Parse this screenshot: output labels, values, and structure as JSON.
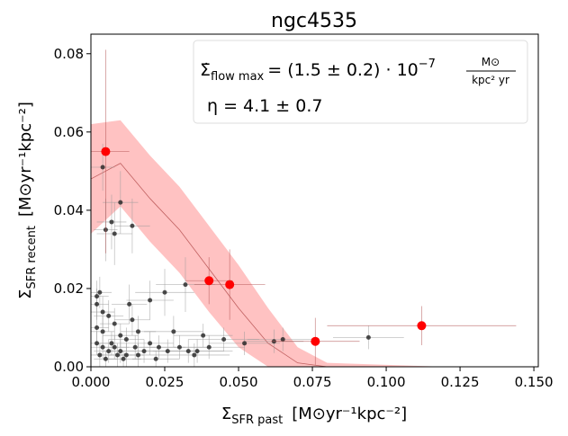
{
  "chart_data": {
    "type": "scatter",
    "title": "ngc4535",
    "x_label": {
      "symbol": "Σ",
      "subscript": "SFR past",
      "unit": "[M⊙yr⁻¹kpc⁻²]"
    },
    "y_label": {
      "symbol": "Σ",
      "subscript": "SFR recent",
      "unit": "[M⊙yr⁻¹kpc⁻²]"
    },
    "annotation": {
      "symbol": "Σ̇",
      "subscript": "flow max",
      "expression": "= (1.5 ± 0.2) · 10",
      "exponent": "−7",
      "unit_numerator": "M⊙",
      "unit_denominator": "kpc² yr",
      "eta": "η = 4.1 ± 0.7"
    },
    "xlim": [
      0,
      0.1515
    ],
    "ylim": [
      0,
      0.085
    ],
    "xticks": [
      {
        "value": 0,
        "label": "0.000"
      },
      0.025,
      {
        "value": 0.05,
        "label": "0.050"
      },
      0.075,
      {
        "value": 0.1,
        "label": "0.100"
      },
      0.125,
      {
        "value": 0.15,
        "label": "0.150"
      }
    ],
    "yticks": [
      {
        "value": 0,
        "label": "0.00"
      },
      0.02,
      0.04,
      0.06,
      0.08
    ],
    "band": {
      "color": "#ff9999",
      "x": [
        0,
        0.01,
        0.02,
        0.03,
        0.04,
        0.05,
        0.06,
        0.07,
        0.08,
        0.12
      ],
      "upper": [
        0.062,
        0.063,
        0.054,
        0.046,
        0.036,
        0.026,
        0.015,
        0.005,
        0.001,
        0
      ],
      "lower": [
        0.034,
        0.041,
        0.032,
        0.024,
        0.014,
        0.005,
        0,
        0,
        0,
        0
      ]
    },
    "model": {
      "color": "#c06060",
      "x": [
        0,
        0.01,
        0.02,
        0.03,
        0.04,
        0.05,
        0.06,
        0.07,
        0.08
      ],
      "values": [
        0.048,
        0.052,
        0.043,
        0.035,
        0.025,
        0.015,
        0.006,
        0.001,
        0
      ]
    },
    "series": [
      {
        "color": "#ff0000",
        "error_color": "#b05050",
        "x": [
          0.005,
          0.04,
          0.047,
          0.076,
          0.112
        ],
        "values": [
          0.055,
          0.022,
          0.021,
          0.0065,
          0.0105
        ],
        "xerr": [
          0.008,
          0.008,
          0.012,
          0.015,
          0.032
        ],
        "yerr": [
          0.026,
          0.006,
          0.009,
          0.006,
          0.005
        ]
      },
      {
        "color": "#222222",
        "error_color": "#999999",
        "x": [
          0.004,
          0.005,
          0.008,
          0.007,
          0.01,
          0.014,
          0.025,
          0.032,
          0.094,
          0.065,
          0.062,
          0.052,
          0.045,
          0.038,
          0.02,
          0.014,
          0.013,
          0.016,
          0.002,
          0.003,
          0.002,
          0.004,
          0.002,
          0.004,
          0.006,
          0.008,
          0.01,
          0.012,
          0.002,
          0.004,
          0.006,
          0.008,
          0.01,
          0.012,
          0.015,
          0.018,
          0.02,
          0.023,
          0.026,
          0.03,
          0.033,
          0.036,
          0.04,
          0.028,
          0.035,
          0.003,
          0.005,
          0.007,
          0.009,
          0.011,
          0.016,
          0.022
        ],
        "values": [
          0.051,
          0.035,
          0.034,
          0.037,
          0.042,
          0.036,
          0.019,
          0.021,
          0.0075,
          0.007,
          0.0065,
          0.006,
          0.007,
          0.008,
          0.017,
          0.012,
          0.016,
          0.009,
          0.018,
          0.019,
          0.016,
          0.014,
          0.01,
          0.009,
          0.013,
          0.011,
          0.008,
          0.007,
          0.006,
          0.005,
          0.004,
          0.005,
          0.004,
          0.003,
          0.005,
          0.004,
          0.006,
          0.005,
          0.004,
          0.005,
          0.004,
          0.004,
          0.005,
          0.009,
          0.003,
          0.003,
          0.002,
          0.006,
          0.003,
          0.002,
          0.003,
          0.002
        ],
        "xerr": [
          0.004,
          0.004,
          0.006,
          0.005,
          0.006,
          0.006,
          0.01,
          0.01,
          0.012,
          0.012,
          0.01,
          0.012,
          0.012,
          0.01,
          0.008,
          0.006,
          0.006,
          0.006,
          0.004,
          0.004,
          0.004,
          0.004,
          0.004,
          0.004,
          0.005,
          0.005,
          0.006,
          0.006,
          0.004,
          0.004,
          0.005,
          0.005,
          0.006,
          0.006,
          0.007,
          0.008,
          0.008,
          0.009,
          0.01,
          0.01,
          0.012,
          0.012,
          0.012,
          0.01,
          0.012,
          0.004,
          0.004,
          0.005,
          0.005,
          0.006,
          0.007,
          0.008
        ],
        "yerr": [
          0.006,
          0.008,
          0.008,
          0.007,
          0.008,
          0.007,
          0.006,
          0.007,
          0.003,
          0.003,
          0.003,
          0.003,
          0.003,
          0.003,
          0.005,
          0.004,
          0.005,
          0.004,
          0.004,
          0.004,
          0.004,
          0.004,
          0.004,
          0.004,
          0.004,
          0.004,
          0.003,
          0.003,
          0.003,
          0.003,
          0.003,
          0.003,
          0.003,
          0.003,
          0.003,
          0.003,
          0.003,
          0.003,
          0.003,
          0.003,
          0.003,
          0.003,
          0.003,
          0.004,
          0.003,
          0.003,
          0.002,
          0.003,
          0.003,
          0.002,
          0.003,
          0.002
        ]
      }
    ]
  }
}
